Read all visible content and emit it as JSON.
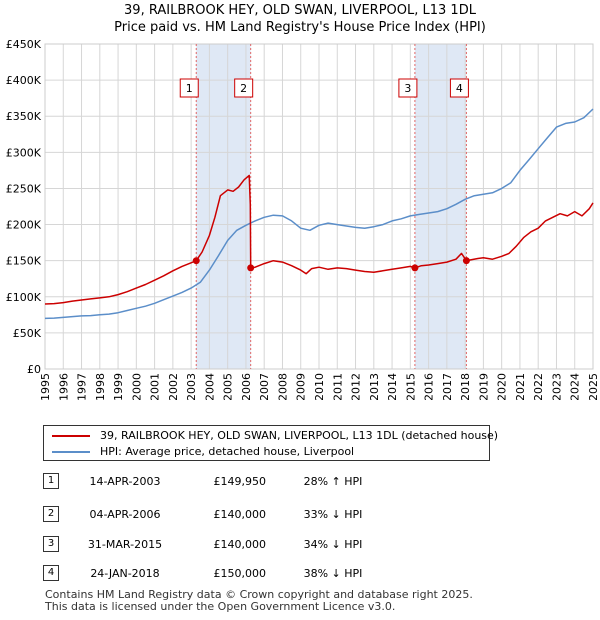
{
  "title_line1": "39, RAILBROOK HEY, OLD SWAN, LIVERPOOL, L13 1DL",
  "title_line2": "Price paid vs. HM Land Registry's House Price Index (HPI)",
  "chart_data": {
    "type": "line",
    "title": "39, RAILBROOK HEY, OLD SWAN, LIVERPOOL, L13 1DL — Price paid vs. HM Land Registry's House Price Index (HPI)",
    "xlim": [
      1995,
      2025
    ],
    "ylim": [
      0,
      450000
    ],
    "x_ticks": [
      "1995",
      "1996",
      "1997",
      "1998",
      "1999",
      "2000",
      "2001",
      "2002",
      "2003",
      "2004",
      "2005",
      "2006",
      "2007",
      "2008",
      "2009",
      "2010",
      "2011",
      "2012",
      "2013",
      "2014",
      "2015",
      "2016",
      "2017",
      "2018",
      "2019",
      "2020",
      "2021",
      "2022",
      "2023",
      "2024",
      "2025"
    ],
    "y_ticks": [
      {
        "value": 0,
        "label": "£0"
      },
      {
        "value": 50000,
        "label": "£50K"
      },
      {
        "value": 100000,
        "label": "£100K"
      },
      {
        "value": 150000,
        "label": "£150K"
      },
      {
        "value": 200000,
        "label": "£200K"
      },
      {
        "value": 250000,
        "label": "£250K"
      },
      {
        "value": 300000,
        "label": "£300K"
      },
      {
        "value": 350000,
        "label": "£350K"
      },
      {
        "value": 400000,
        "label": "£400K"
      },
      {
        "value": 450000,
        "label": "£450K"
      }
    ],
    "grid": true,
    "shaded_periods": [
      [
        2003.28,
        2006.26
      ],
      [
        2015.25,
        2018.07
      ]
    ],
    "series": [
      {
        "name": "39, RAILBROOK HEY, OLD SWAN, LIVERPOOL, L13 1DL (detached house)",
        "color": "#cc0000",
        "points": [
          [
            1995.0,
            90000
          ],
          [
            1995.5,
            90500
          ],
          [
            1996.0,
            92000
          ],
          [
            1996.5,
            94000
          ],
          [
            1997.0,
            95500
          ],
          [
            1997.5,
            97000
          ],
          [
            1998.0,
            98500
          ],
          [
            1998.5,
            100000
          ],
          [
            1999.0,
            103000
          ],
          [
            1999.5,
            107000
          ],
          [
            2000.0,
            112000
          ],
          [
            2000.5,
            117000
          ],
          [
            2001.0,
            123000
          ],
          [
            2001.5,
            129000
          ],
          [
            2002.0,
            136000
          ],
          [
            2002.5,
            142000
          ],
          [
            2003.0,
            147000
          ],
          [
            2003.28,
            149950
          ],
          [
            2003.6,
            162000
          ],
          [
            2004.0,
            185000
          ],
          [
            2004.3,
            210000
          ],
          [
            2004.6,
            240000
          ],
          [
            2005.0,
            248000
          ],
          [
            2005.3,
            246000
          ],
          [
            2005.6,
            252000
          ],
          [
            2005.9,
            262000
          ],
          [
            2006.18,
            268000
          ],
          [
            2006.24,
            228000
          ],
          [
            2006.26,
            140000
          ],
          [
            2006.5,
            141000
          ],
          [
            2007.0,
            146000
          ],
          [
            2007.5,
            150000
          ],
          [
            2008.0,
            148000
          ],
          [
            2008.5,
            143000
          ],
          [
            2009.0,
            137000
          ],
          [
            2009.3,
            132000
          ],
          [
            2009.6,
            139000
          ],
          [
            2010.0,
            141000
          ],
          [
            2010.5,
            138000
          ],
          [
            2011.0,
            140000
          ],
          [
            2011.5,
            139000
          ],
          [
            2012.0,
            137000
          ],
          [
            2012.5,
            135000
          ],
          [
            2013.0,
            134000
          ],
          [
            2013.5,
            136000
          ],
          [
            2014.0,
            138000
          ],
          [
            2014.5,
            140000
          ],
          [
            2015.0,
            142000
          ],
          [
            2015.25,
            140000
          ],
          [
            2015.6,
            143000
          ],
          [
            2016.0,
            144000
          ],
          [
            2016.5,
            146000
          ],
          [
            2017.0,
            148000
          ],
          [
            2017.5,
            152000
          ],
          [
            2017.8,
            160000
          ],
          [
            2018.07,
            150000
          ],
          [
            2018.3,
            151000
          ],
          [
            2018.7,
            153000
          ],
          [
            2019.0,
            154000
          ],
          [
            2019.5,
            152000
          ],
          [
            2020.0,
            156000
          ],
          [
            2020.4,
            160000
          ],
          [
            2020.8,
            170000
          ],
          [
            2021.2,
            182000
          ],
          [
            2021.6,
            190000
          ],
          [
            2022.0,
            195000
          ],
          [
            2022.4,
            205000
          ],
          [
            2022.8,
            210000
          ],
          [
            2023.2,
            215000
          ],
          [
            2023.6,
            212000
          ],
          [
            2024.0,
            218000
          ],
          [
            2024.4,
            212000
          ],
          [
            2024.8,
            222000
          ],
          [
            2025.0,
            230000
          ]
        ]
      },
      {
        "name": "HPI: Average price, detached house, Liverpool",
        "color": "#5b8ec9",
        "points": [
          [
            1995.0,
            70000
          ],
          [
            1995.5,
            70500
          ],
          [
            1996.0,
            71500
          ],
          [
            1996.5,
            72500
          ],
          [
            1997.0,
            73500
          ],
          [
            1997.5,
            74000
          ],
          [
            1998.0,
            75000
          ],
          [
            1998.5,
            76000
          ],
          [
            1999.0,
            78000
          ],
          [
            1999.5,
            81000
          ],
          [
            2000.0,
            84000
          ],
          [
            2000.5,
            87000
          ],
          [
            2001.0,
            91000
          ],
          [
            2001.5,
            96000
          ],
          [
            2002.0,
            101000
          ],
          [
            2002.5,
            106000
          ],
          [
            2003.0,
            112000
          ],
          [
            2003.5,
            120000
          ],
          [
            2004.0,
            137000
          ],
          [
            2004.5,
            157000
          ],
          [
            2005.0,
            178000
          ],
          [
            2005.5,
            192000
          ],
          [
            2006.0,
            199000
          ],
          [
            2006.5,
            205000
          ],
          [
            2007.0,
            210000
          ],
          [
            2007.5,
            213000
          ],
          [
            2008.0,
            212000
          ],
          [
            2008.5,
            205000
          ],
          [
            2009.0,
            195000
          ],
          [
            2009.5,
            192000
          ],
          [
            2010.0,
            199000
          ],
          [
            2010.5,
            202000
          ],
          [
            2011.0,
            200000
          ],
          [
            2011.5,
            198000
          ],
          [
            2012.0,
            196000
          ],
          [
            2012.5,
            195000
          ],
          [
            2013.0,
            197000
          ],
          [
            2013.5,
            200000
          ],
          [
            2014.0,
            205000
          ],
          [
            2014.5,
            208000
          ],
          [
            2015.0,
            212000
          ],
          [
            2015.5,
            214000
          ],
          [
            2016.0,
            216000
          ],
          [
            2016.5,
            218000
          ],
          [
            2017.0,
            222000
          ],
          [
            2017.5,
            228000
          ],
          [
            2018.0,
            235000
          ],
          [
            2018.5,
            240000
          ],
          [
            2019.0,
            242000
          ],
          [
            2019.5,
            244000
          ],
          [
            2020.0,
            250000
          ],
          [
            2020.5,
            258000
          ],
          [
            2021.0,
            275000
          ],
          [
            2021.5,
            290000
          ],
          [
            2022.0,
            305000
          ],
          [
            2022.5,
            320000
          ],
          [
            2023.0,
            335000
          ],
          [
            2023.5,
            340000
          ],
          [
            2024.0,
            342000
          ],
          [
            2024.5,
            348000
          ],
          [
            2025.0,
            360000
          ]
        ]
      }
    ],
    "sales": [
      {
        "n": "1",
        "x": 2003.28,
        "price": 149950
      },
      {
        "n": "2",
        "x": 2006.26,
        "price": 140000
      },
      {
        "n": "3",
        "x": 2015.25,
        "price": 140000
      },
      {
        "n": "4",
        "x": 2018.07,
        "price": 150000
      }
    ]
  },
  "legend": [
    {
      "label": "39, RAILBROOK HEY, OLD SWAN, LIVERPOOL, L13 1DL (detached house)",
      "color": "#cc0000"
    },
    {
      "label": "HPI: Average price, detached house, Liverpool",
      "color": "#5b8ec9"
    }
  ],
  "transactions": [
    {
      "n": "1",
      "date": "14-APR-2003",
      "price": "£149,950",
      "hpi": "28% ↑ HPI"
    },
    {
      "n": "2",
      "date": "04-APR-2006",
      "price": "£140,000",
      "hpi": "33% ↓ HPI"
    },
    {
      "n": "3",
      "date": "31-MAR-2015",
      "price": "£140,000",
      "hpi": "34% ↓ HPI"
    },
    {
      "n": "4",
      "date": "24-JAN-2018",
      "price": "£150,000",
      "hpi": "38% ↓ HPI"
    }
  ],
  "footer_line1": "Contains HM Land Registry data © Crown copyright and database right 2025.",
  "footer_line2": "This data is licensed under the Open Government Licence v3.0."
}
